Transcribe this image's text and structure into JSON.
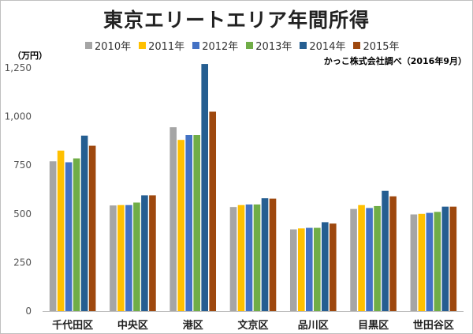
{
  "title": "東京エリートエリア年間所得",
  "unit_label": "（万円）",
  "source_note": "かっこ株式会社調べ（2016年9月）",
  "chart_data": {
    "type": "bar",
    "title": "東京エリートエリア年間所得",
    "ylabel": "（万円）",
    "ylim": [
      0,
      1250
    ],
    "yticks": [
      "0",
      "250",
      "500",
      "750",
      "1,000",
      "1,250"
    ],
    "ytick_values": [
      0,
      250,
      500,
      750,
      1000,
      1250
    ],
    "grid": false,
    "legend_position": "top",
    "categories": [
      "千代田区",
      "中央区",
      "港区",
      "文京区",
      "品川区",
      "目黒区",
      "世田谷区"
    ],
    "series": [
      {
        "name": "2010年",
        "color": "#a5a5a5",
        "values": [
          770,
          543,
          945,
          535,
          420,
          525,
          497
        ]
      },
      {
        "name": "2011年",
        "color": "#ffc000",
        "values": [
          825,
          545,
          880,
          545,
          425,
          545,
          500
        ]
      },
      {
        "name": "2012年",
        "color": "#4472c4",
        "values": [
          765,
          545,
          905,
          548,
          428,
          530,
          505
        ]
      },
      {
        "name": "2013年",
        "color": "#70ad47",
        "values": [
          785,
          558,
          905,
          548,
          428,
          540,
          510
        ]
      },
      {
        "name": "2014年",
        "color": "#255e91",
        "values": [
          902,
          595,
          1270,
          580,
          457,
          618,
          537
        ]
      },
      {
        "name": "2015年",
        "color": "#9e480e",
        "values": [
          850,
          595,
          1025,
          578,
          450,
          590,
          537
        ]
      }
    ]
  }
}
